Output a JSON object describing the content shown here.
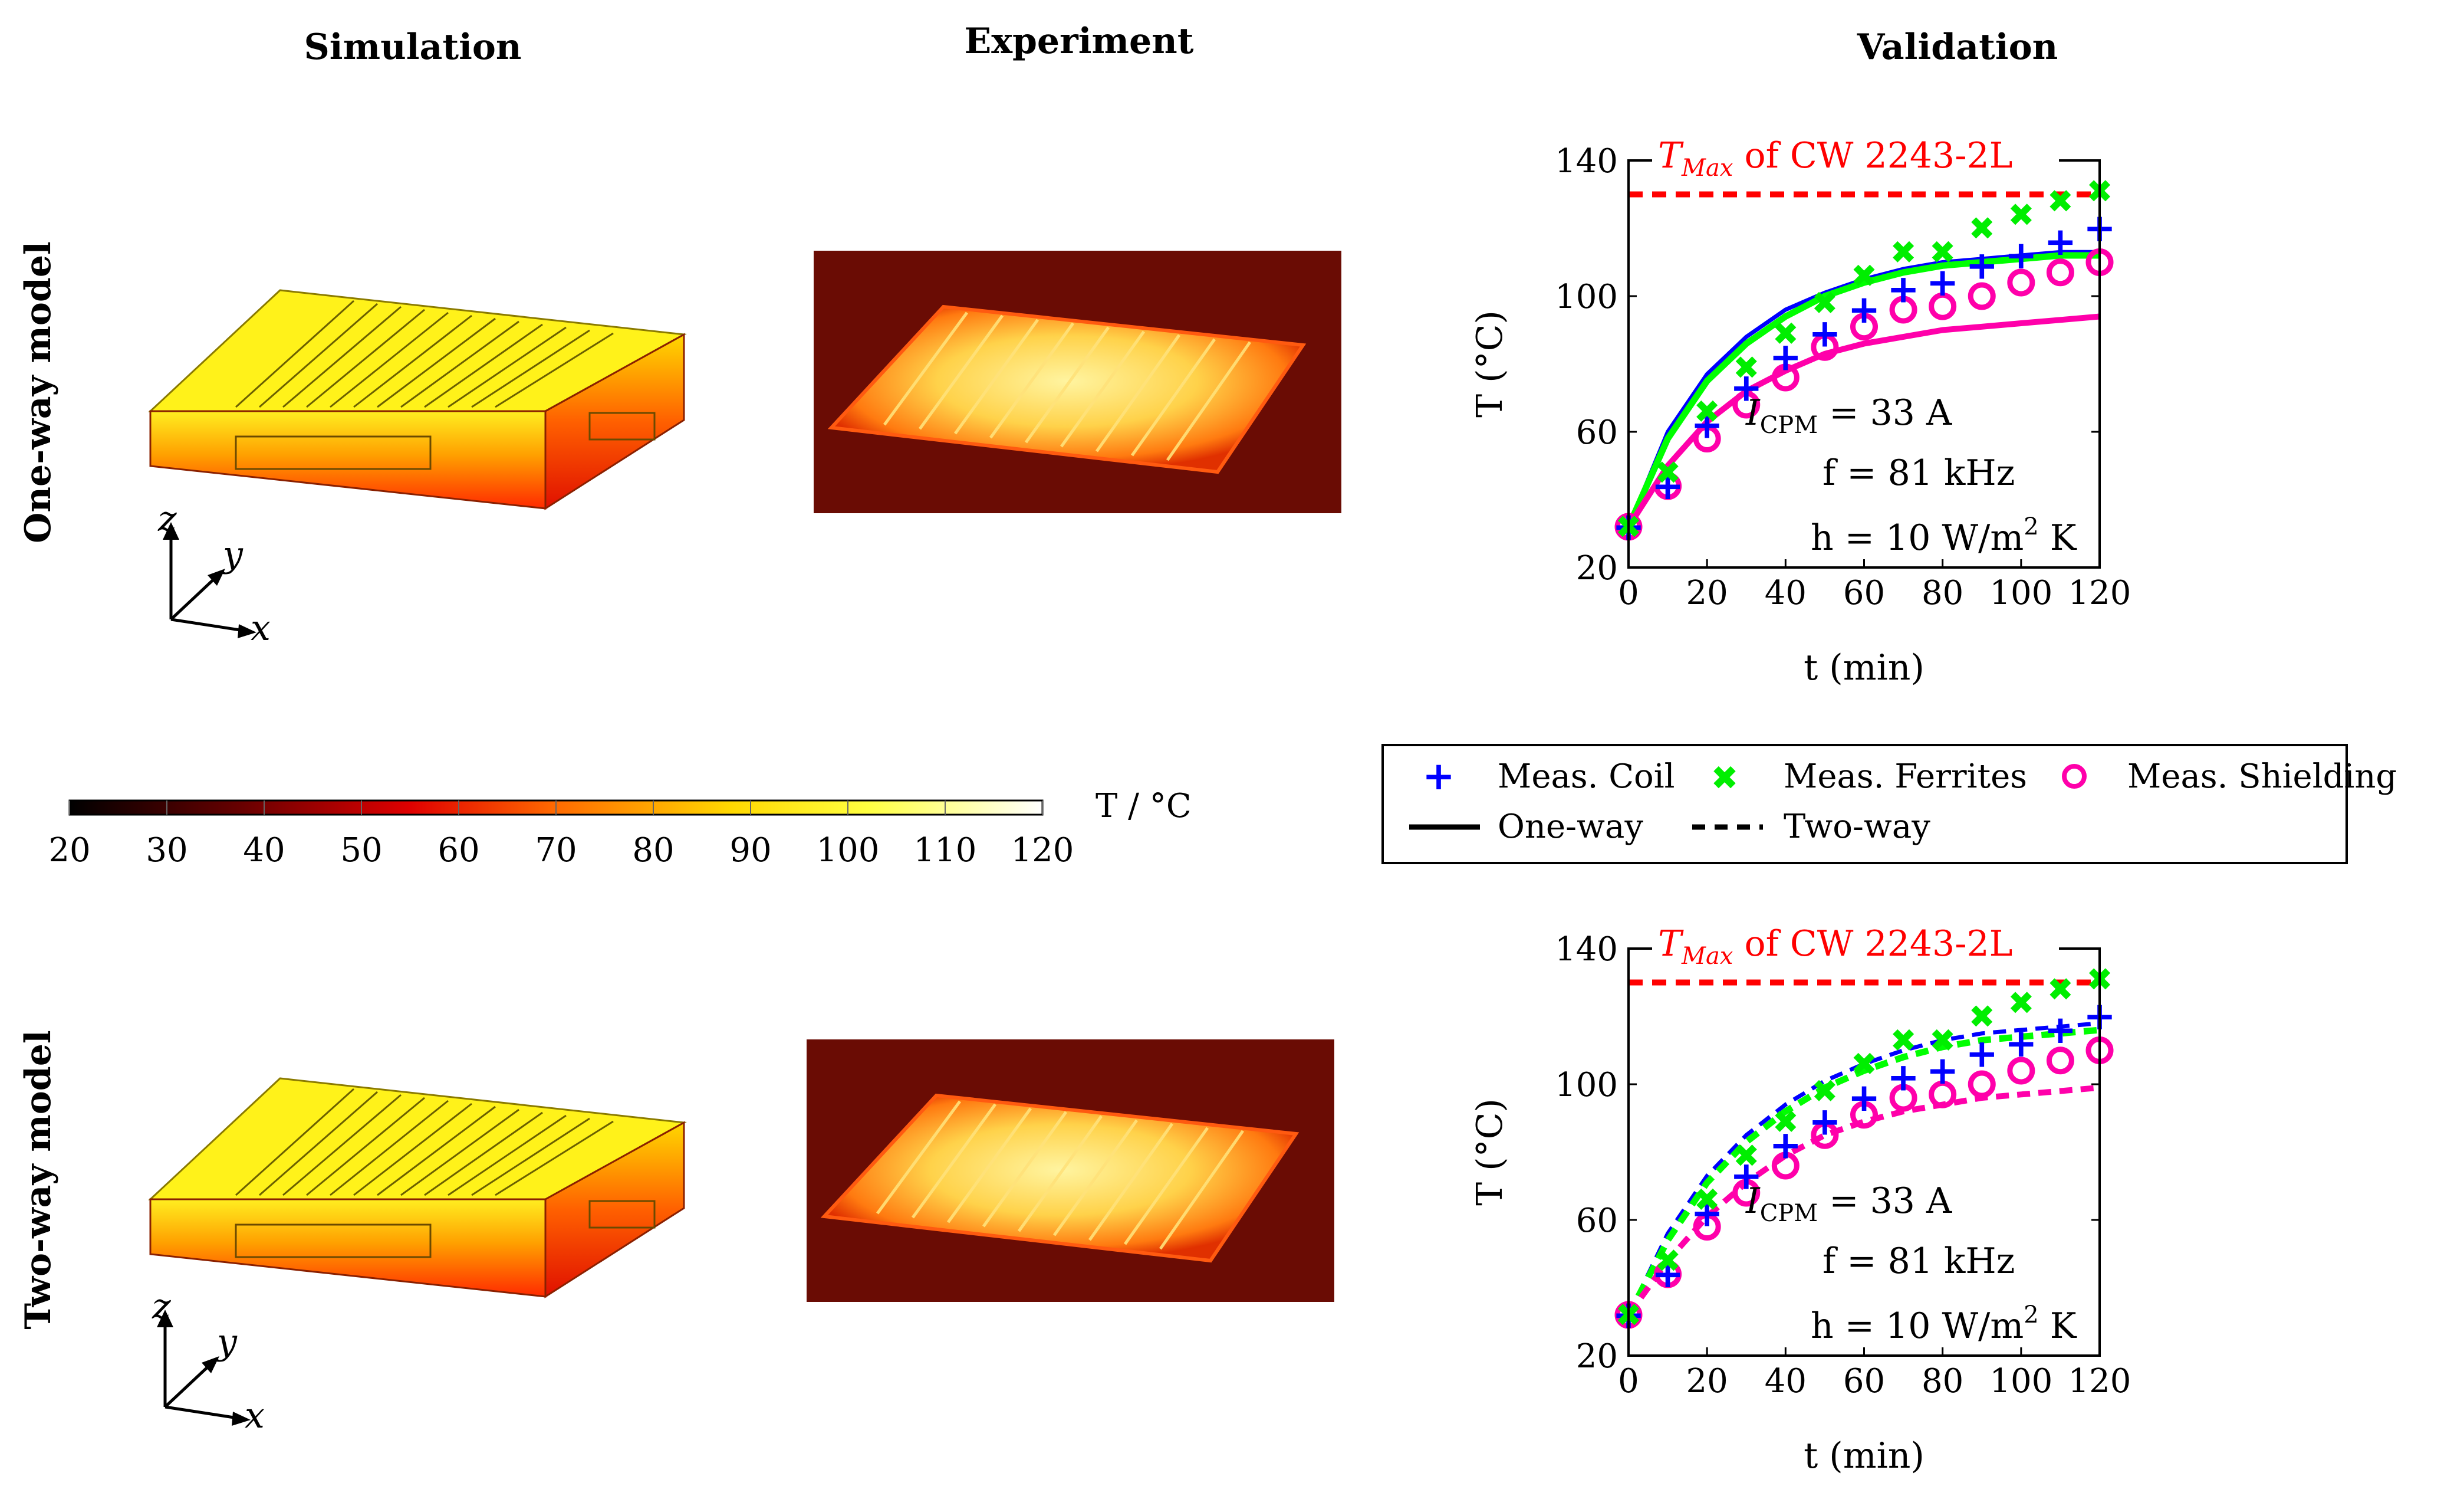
{
  "headers": {
    "simulation": "Simulation",
    "experiment": "Experiment",
    "validation": "Validation"
  },
  "rows": {
    "one_way": "One-way model",
    "two_way": "Two-way model"
  },
  "axes_triad": {
    "x": "x",
    "y": "y",
    "z": "z"
  },
  "colorbar": {
    "label": "T / °C",
    "ticks": [
      "20",
      "30",
      "40",
      "50",
      "60",
      "70",
      "80",
      "90",
      "100",
      "110",
      "120"
    ]
  },
  "annotations": {
    "current": "I",
    "current_sub": "CPM",
    "current_val": " = 33 A",
    "freq": "f = 81 kHz",
    "htc_pre": "h = 10 W/m",
    "htc_sup": "2",
    "htc_post": " K",
    "tmax_T": "T",
    "tmax_sub": "Max",
    "tmax_rest": " of CW 2243-2L"
  },
  "legend": {
    "coil": "Meas. Coil",
    "ferrites": "Meas. Ferrites",
    "shielding": "Meas. Shielding",
    "one_way": "One-way",
    "two_way": "Two-way"
  },
  "colors": {
    "coil": "#0000ff",
    "ferrites": "#00ff00",
    "shielding": "#ff00aa",
    "tmax": "#ff0000"
  },
  "chart_data": [
    {
      "type": "line",
      "name": "One-way model validation",
      "xlabel": "t (min)",
      "ylabel": "T (°C)",
      "xlim": [
        0,
        120
      ],
      "ylim": [
        20,
        140
      ],
      "xticks": [
        0,
        20,
        40,
        60,
        80,
        100,
        120
      ],
      "yticks": [
        20,
        60,
        100,
        140
      ],
      "line_style": "solid",
      "tmax_line": 130,
      "measurements": {
        "x": [
          0,
          10,
          20,
          30,
          40,
          50,
          60,
          70,
          80,
          90,
          100,
          110,
          120
        ],
        "coil": [
          32,
          44,
          62,
          73,
          82,
          89,
          96,
          102,
          104,
          109,
          112,
          116,
          120
        ],
        "ferrites": [
          32,
          48,
          66,
          79,
          89,
          98,
          106,
          113,
          113,
          120,
          124,
          128,
          131
        ],
        "shielding": [
          32,
          44,
          58,
          68,
          76,
          85,
          91,
          96,
          97,
          100,
          104,
          107,
          110
        ]
      },
      "series": [
        {
          "name": "Coil",
          "x": [
            0,
            10,
            20,
            30,
            40,
            50,
            60,
            70,
            80,
            90,
            100,
            110,
            120
          ],
          "values": [
            32,
            60,
            77,
            88,
            96,
            101,
            105,
            108,
            110,
            111,
            112,
            113,
            113
          ]
        },
        {
          "name": "Ferrites",
          "x": [
            0,
            10,
            20,
            30,
            40,
            50,
            60,
            70,
            80,
            90,
            100,
            110,
            120
          ],
          "values": [
            32,
            58,
            75,
            86,
            94,
            100,
            104,
            107,
            109,
            110,
            111,
            112,
            112
          ]
        },
        {
          "name": "Shielding",
          "x": [
            0,
            10,
            20,
            30,
            40,
            50,
            60,
            70,
            80,
            90,
            100,
            110,
            120
          ],
          "values": [
            32,
            50,
            63,
            72,
            78,
            83,
            86,
            88,
            90,
            91,
            92,
            93,
            94
          ]
        }
      ]
    },
    {
      "type": "line",
      "name": "Two-way model validation",
      "xlabel": "t (min)",
      "ylabel": "T (°C)",
      "xlim": [
        0,
        120
      ],
      "ylim": [
        20,
        140
      ],
      "xticks": [
        0,
        20,
        40,
        60,
        80,
        100,
        120
      ],
      "yticks": [
        20,
        60,
        100,
        140
      ],
      "line_style": "dashed",
      "tmax_line": 130,
      "measurements": {
        "x": [
          0,
          10,
          20,
          30,
          40,
          50,
          60,
          70,
          80,
          90,
          100,
          110,
          120
        ],
        "coil": [
          32,
          44,
          62,
          73,
          82,
          89,
          96,
          102,
          104,
          109,
          112,
          116,
          120
        ],
        "ferrites": [
          32,
          48,
          66,
          79,
          89,
          98,
          106,
          113,
          113,
          120,
          124,
          128,
          131
        ],
        "shielding": [
          32,
          44,
          58,
          68,
          76,
          85,
          91,
          96,
          97,
          100,
          104,
          107,
          110
        ]
      },
      "series": [
        {
          "name": "Coil",
          "x": [
            0,
            10,
            20,
            30,
            40,
            50,
            60,
            70,
            80,
            90,
            100,
            110,
            120
          ],
          "values": [
            32,
            56,
            73,
            85,
            94,
            101,
            106,
            110,
            113,
            115,
            116,
            117,
            118
          ]
        },
        {
          "name": "Ferrites",
          "x": [
            0,
            10,
            20,
            30,
            40,
            50,
            60,
            70,
            80,
            90,
            100,
            110,
            120
          ],
          "values": [
            32,
            54,
            71,
            83,
            92,
            99,
            104,
            108,
            111,
            113,
            114,
            115,
            116
          ]
        },
        {
          "name": "Shielding",
          "x": [
            0,
            10,
            20,
            30,
            40,
            50,
            60,
            70,
            80,
            90,
            100,
            110,
            120
          ],
          "values": [
            32,
            48,
            61,
            71,
            79,
            85,
            89,
            92,
            94,
            96,
            97,
            98,
            99
          ]
        }
      ]
    }
  ]
}
